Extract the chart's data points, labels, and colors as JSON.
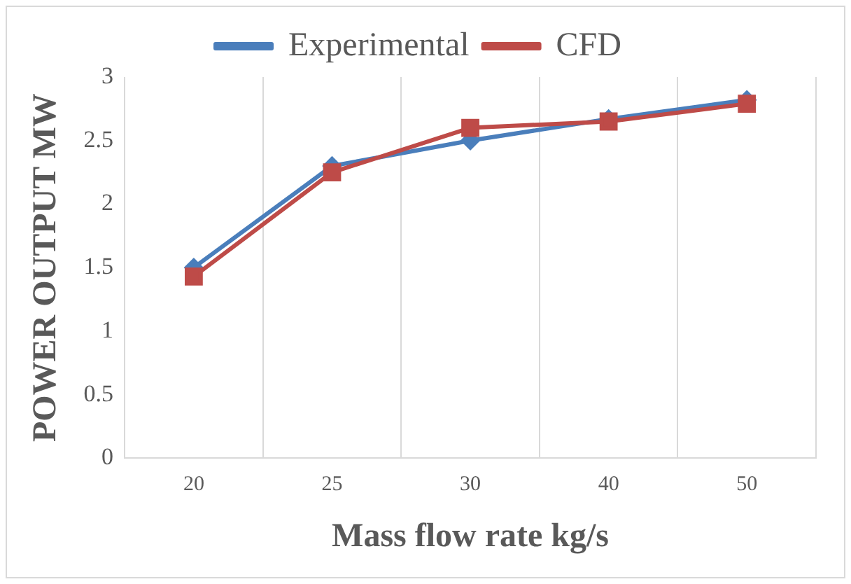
{
  "chart_data": {
    "type": "line",
    "xlabel": "Mass flow rate kg/s",
    "ylabel": "POWER OUTPUT MW",
    "categories": [
      "20",
      "25",
      "30",
      "40",
      "50"
    ],
    "series": [
      {
        "name": "Experimental",
        "color": "#4a7ebb",
        "values": [
          1.5,
          2.3,
          2.5,
          2.67,
          2.82
        ],
        "marker": "diamond"
      },
      {
        "name": "CFD",
        "color": "#be4b48",
        "values": [
          1.43,
          2.25,
          2.6,
          2.65,
          2.79
        ],
        "marker": "square"
      }
    ],
    "ylim": [
      0,
      3
    ],
    "yticks": [
      0,
      0.5,
      1,
      1.5,
      2,
      2.5,
      3
    ],
    "grid": "x",
    "legend": "top"
  }
}
